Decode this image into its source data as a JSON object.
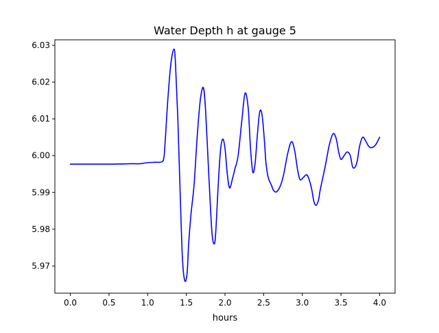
{
  "chart_data": {
    "type": "line",
    "title": "Water Depth h at gauge 5",
    "xlabel": "hours",
    "ylabel": "",
    "xlim": [
      -0.2,
      4.2
    ],
    "ylim": [
      5.9626,
      6.0315
    ],
    "xticks": [
      0.0,
      0.5,
      1.0,
      1.5,
      2.0,
      2.5,
      3.0,
      3.5,
      4.0
    ],
    "xtick_labels": [
      "0.0",
      "0.5",
      "1.0",
      "1.5",
      "2.0",
      "2.5",
      "3.0",
      "3.5",
      "4.0"
    ],
    "yticks": [
      5.97,
      5.98,
      5.99,
      6.0,
      6.01,
      6.02,
      6.03
    ],
    "ytick_labels": [
      "5.97",
      "5.98",
      "5.99",
      "6.00",
      "6.01",
      "6.02",
      "6.03"
    ],
    "grid": false,
    "legend": "none",
    "series": [
      {
        "name": "",
        "color": "#0000ff",
        "x": [
          0.0,
          0.5,
          0.8,
          0.9,
          1.0,
          1.1,
          1.18,
          1.21,
          1.23,
          1.26,
          1.3,
          1.34,
          1.36,
          1.39,
          1.42,
          1.45,
          1.48,
          1.51,
          1.53,
          1.56,
          1.6,
          1.64,
          1.68,
          1.72,
          1.75,
          1.79,
          1.83,
          1.86,
          1.88,
          1.91,
          1.94,
          1.97,
          2.0,
          2.03,
          2.06,
          2.1,
          2.13,
          2.17,
          2.22,
          2.26,
          2.3,
          2.33,
          2.36,
          2.39,
          2.42,
          2.45,
          2.48,
          2.51,
          2.53,
          2.56,
          2.6,
          2.63,
          2.67,
          2.72,
          2.76,
          2.81,
          2.86,
          2.9,
          2.94,
          2.97,
          3.01,
          3.05,
          3.08,
          3.12,
          3.15,
          3.18,
          3.21,
          3.23,
          3.26,
          3.3,
          3.35,
          3.4,
          3.44,
          3.47,
          3.5,
          3.54,
          3.58,
          3.62,
          3.65,
          3.68,
          3.71,
          3.74,
          3.78,
          3.82,
          3.86,
          3.9,
          3.95,
          4.0
        ],
        "y": [
          5.9977,
          5.9977,
          5.9978,
          5.9978,
          5.9981,
          5.9982,
          5.9983,
          5.9995,
          6.005,
          6.015,
          6.025,
          6.029,
          6.025,
          6.01,
          5.99,
          5.972,
          5.966,
          5.968,
          5.976,
          5.984,
          5.992,
          6.005,
          6.015,
          6.0185,
          6.012,
          5.995,
          5.9795,
          5.976,
          5.979,
          5.991,
          6.001,
          6.0045,
          6.002,
          5.995,
          5.9912,
          5.994,
          5.9965,
          6.0,
          6.01,
          6.017,
          6.013,
          6.002,
          5.9955,
          5.998,
          6.006,
          6.012,
          6.011,
          6.004,
          5.998,
          5.994,
          5.992,
          5.9905,
          5.9902,
          5.992,
          5.995,
          6.0005,
          6.0038,
          6.0015,
          5.996,
          5.9935,
          5.994,
          5.9948,
          5.994,
          5.991,
          5.9875,
          5.9865,
          5.988,
          5.9905,
          5.9935,
          5.9975,
          6.003,
          6.006,
          6.0045,
          6.001,
          5.999,
          6.0,
          6.001,
          6.0,
          5.997,
          5.9968,
          5.9985,
          6.0025,
          6.005,
          6.004,
          6.0025,
          6.0022,
          6.003,
          6.005
        ]
      }
    ]
  }
}
